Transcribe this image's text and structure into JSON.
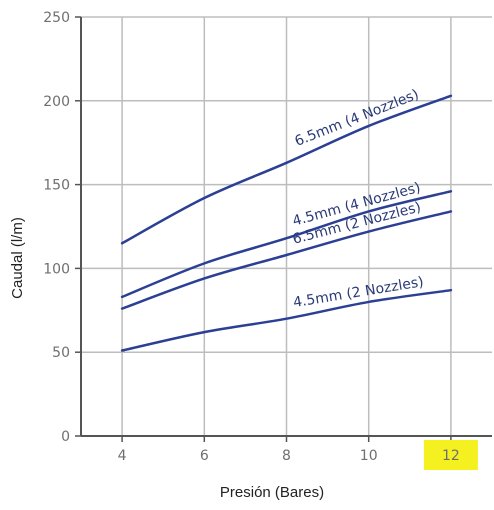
{
  "chart_data": {
    "type": "line",
    "title": "",
    "xlabel": "Presión (Bares)",
    "ylabel": "Caudal (l/m)",
    "xlim": [
      3,
      13
    ],
    "ylim": [
      0,
      250
    ],
    "x_ticks": [
      "4",
      "6",
      "8",
      "10",
      "12"
    ],
    "y_ticks": [
      "0",
      "50",
      "100",
      "150",
      "200",
      "250"
    ],
    "grid": true,
    "highlighted_tick": "12",
    "highlight_color": "#f5f020",
    "line_color": "#2b3f94",
    "x": [
      4,
      6,
      8,
      10,
      12
    ],
    "series": [
      {
        "name": "6.5mm (4 Nozzles)",
        "values": [
          115,
          142,
          163,
          185,
          203
        ]
      },
      {
        "name": "4.5mm (4 Nozzles)",
        "values": [
          83,
          103,
          118,
          134,
          146
        ]
      },
      {
        "name": "6.5mm (2 Nozzles)",
        "values": [
          76,
          94,
          108,
          122,
          134
        ]
      },
      {
        "name": "4.5mm (2 Nozzles)",
        "values": [
          51,
          62,
          70,
          80,
          87
        ]
      }
    ]
  }
}
